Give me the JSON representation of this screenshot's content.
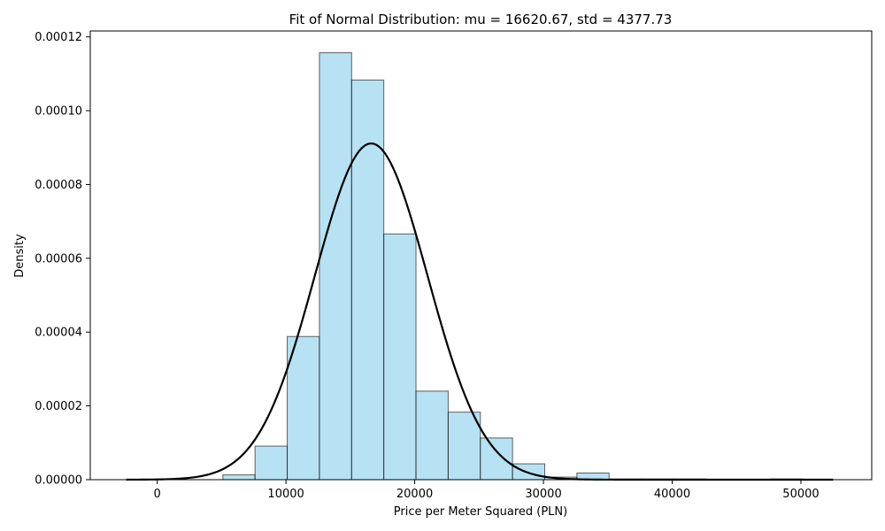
{
  "chart_data": {
    "type": "bar",
    "title": "Fit of Normal Distribution: mu = 16620.67, std = 4377.73",
    "xlabel": "Price per Meter Squared (PLN)",
    "ylabel": "Density",
    "xlim": [
      -5200,
      55500
    ],
    "ylim": [
      0,
      0.0001216
    ],
    "x_ticks": [
      0,
      10000,
      20000,
      30000,
      40000,
      50000
    ],
    "x_tick_labels": [
      "0",
      "10000",
      "20000",
      "30000",
      "40000",
      "50000"
    ],
    "y_ticks": [
      0,
      2e-05,
      4e-05,
      6e-05,
      8e-05,
      0.0001,
      0.00012
    ],
    "y_tick_labels": [
      "0.00000",
      "0.00002",
      "0.00004",
      "0.00006",
      "0.00008",
      "0.00010",
      "0.00012"
    ],
    "grid": false,
    "histogram": {
      "bin_edges": [
        5100,
        7600,
        10100,
        12600,
        15100,
        17600,
        20100,
        22600,
        25100,
        27600,
        30100,
        32600,
        35100,
        37600,
        40100,
        42600,
        45100,
        47600,
        50100
      ],
      "densities": [
        1.3e-06,
        9.1e-06,
        3.88e-05,
        0.0001157,
        0.0001083,
        6.66e-05,
        2.4e-05,
        1.83e-05,
        1.13e-05,
        4.3e-06,
        7e-07,
        1.8e-06,
        2e-07,
        2e-07,
        2e-07,
        1e-07,
        1e-07,
        2e-07
      ],
      "fill_color": "#87ceeb",
      "edge_color": "#000000"
    },
    "fit_curve": {
      "distribution": "normal",
      "mu": 16620.67,
      "std": 4377.73,
      "x_range": [
        -2400,
        52500
      ],
      "color": "#000000"
    }
  }
}
